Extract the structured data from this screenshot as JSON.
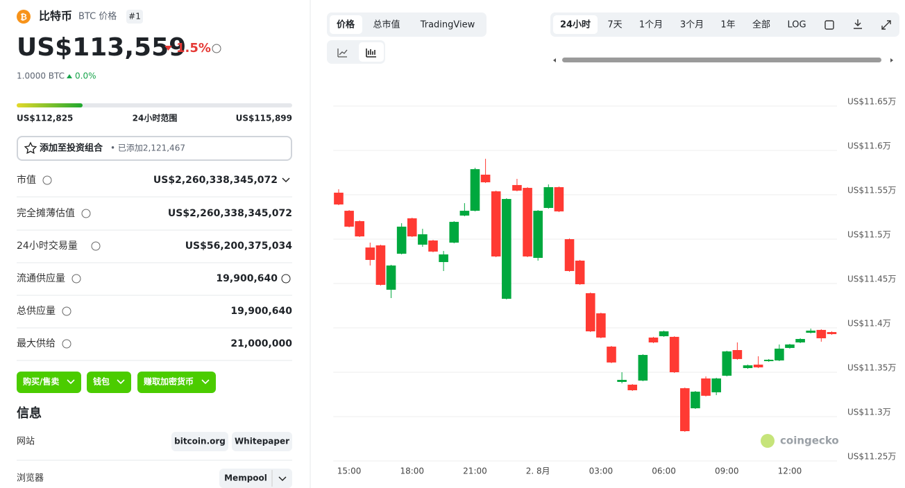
{
  "coin": {
    "name": "比特币",
    "symbol": "BTC 价格",
    "rank": "#1",
    "price": "US$113,559",
    "change": "1.5%",
    "btc_amount": "1.0000 BTC",
    "btc_change": "0.0%"
  },
  "range": {
    "low": "US$112,825",
    "label": "24小时范围",
    "high": "US$115,899"
  },
  "portfolio": {
    "label": "添加至投资组合",
    "added": "• 已添加2,121,467"
  },
  "stats": [
    {
      "label": "市值",
      "value": "US$2,260,338,345,072"
    },
    {
      "label": "完全摊薄估值",
      "value": "US$2,260,338,345,072"
    },
    {
      "label": "24小时交易量",
      "value": "US$56,200,375,034"
    },
    {
      "label": "流通供应量",
      "value": "19,900,640"
    },
    {
      "label": "总供应量",
      "value": "19,900,640"
    },
    {
      "label": "最大供给",
      "value": "21,000,000"
    }
  ],
  "buttons": [
    "购买/售卖",
    "钱包",
    "赚取加密货币"
  ],
  "info": {
    "title": "信息",
    "rows": [
      {
        "label": "网站",
        "links": [
          "bitcoin.org",
          "Whitepaper"
        ]
      },
      {
        "label": "浏览器",
        "links": [
          "Mempool"
        ]
      }
    ]
  },
  "tabs": [
    "价格",
    "总市值",
    "TradingView"
  ],
  "ranges": [
    "24小时",
    "7天",
    "1个月",
    "3个月",
    "1年",
    "全部",
    "LOG"
  ],
  "watermark": "coingecko",
  "chart_data": {
    "type": "candlestick",
    "up_color": "#00a83e",
    "down_color": "#ff3a33",
    "grid": true,
    "categories": [
      null,
      "15:00",
      null,
      null,
      null,
      null,
      null,
      "18:00",
      null,
      null,
      null,
      null,
      null,
      "21:00",
      null,
      null,
      null,
      null,
      null,
      "2. 8月",
      null,
      null,
      null,
      null,
      null,
      "03:00",
      null,
      null,
      null,
      null,
      null,
      "06:00",
      null,
      null,
      null,
      null,
      null,
      "09:00",
      null,
      null,
      null,
      null,
      null,
      "12:00",
      null,
      null,
      null,
      null
    ],
    "open": [
      115524,
      115320,
      115203,
      114906,
      114930,
      114430,
      114836,
      115235,
      114938,
      114985,
      114742,
      114961,
      115266,
      115320,
      115727,
      115539,
      114328,
      115610,
      115578,
      114789,
      115352,
      115586,
      115000,
      114758,
      114391,
      114164,
      113789,
      113391,
      113360,
      113406,
      113891,
      113906,
      113899,
      113320,
      113094,
      113430,
      113274,
      113461,
      113750,
      113547,
      113586,
      113625,
      113633,
      113774,
      113836,
      113945,
      113977,
      113953
    ],
    "high": [
      115563,
      115328,
      115211,
      114961,
      114938,
      114711,
      115180,
      115242,
      115117,
      114992,
      114867,
      115203,
      115406,
      115805,
      115906,
      115547,
      115461,
      115680,
      115586,
      115328,
      115617,
      115594,
      115008,
      114766,
      114399,
      114172,
      113797,
      113500,
      113367,
      113703,
      113899,
      113969,
      113906,
      113328,
      113289,
      113453,
      113438,
      113742,
      113836,
      113586,
      113680,
      113649,
      113813,
      113820,
      113883,
      113992,
      113985,
      113961
    ],
    "low": [
      115383,
      115133,
      115024,
      114703,
      114477,
      114336,
      114828,
      115024,
      114914,
      114852,
      114641,
      114953,
      115258,
      115313,
      115633,
      114797,
      114320,
      115539,
      114797,
      114758,
      115344,
      115305,
      114633,
      114485,
      113953,
      113883,
      113602,
      113375,
      113289,
      113399,
      113828,
      113899,
      113492,
      112828,
      113086,
      113227,
      113242,
      113453,
      113641,
      113539,
      113547,
      113617,
      113625,
      113766,
      113828,
      113938,
      113844,
      113922
    ],
    "close": [
      115391,
      115141,
      115031,
      114766,
      114485,
      114703,
      115141,
      115031,
      115055,
      114860,
      114828,
      115195,
      115320,
      115789,
      115641,
      114805,
      115453,
      115547,
      114805,
      115320,
      115586,
      115313,
      114641,
      114492,
      113961,
      113891,
      113610,
      113414,
      113297,
      113695,
      113836,
      113961,
      113500,
      112836,
      113281,
      113235,
      113430,
      113735,
      113649,
      113578,
      113555,
      113641,
      113766,
      113813,
      113875,
      113969,
      113883,
      113930
    ],
    "ylim": [
      112500,
      116680
    ],
    "yticks": [
      {
        "value": 112500,
        "label": "US$11.25万"
      },
      {
        "value": 113000,
        "label": "US$11.3万"
      },
      {
        "value": 113500,
        "label": "US$11.35万"
      },
      {
        "value": 114000,
        "label": "US$11.4万"
      },
      {
        "value": 114500,
        "label": "US$11.45万"
      },
      {
        "value": 115000,
        "label": "US$11.5万"
      },
      {
        "value": 115500,
        "label": "US$11.55万"
      },
      {
        "value": 116000,
        "label": "US$11.6万"
      },
      {
        "value": 116500,
        "label": "US$11.65万"
      }
    ]
  }
}
